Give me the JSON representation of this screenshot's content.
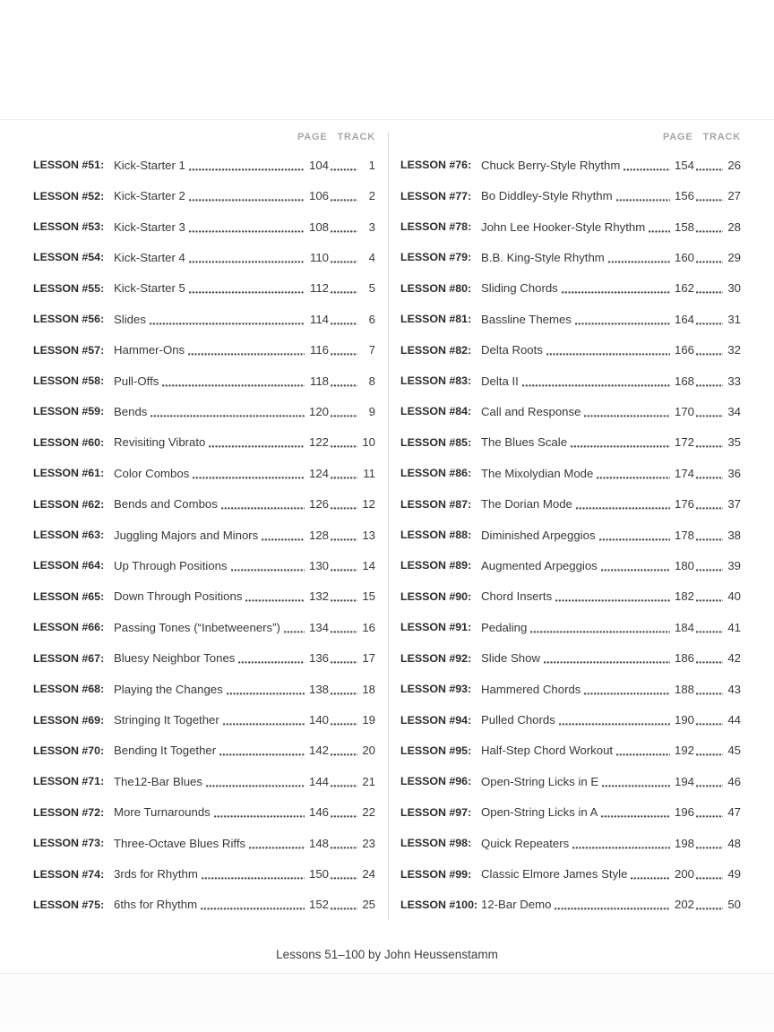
{
  "header": {
    "page_label": "PAGE",
    "track_label": "TRACK"
  },
  "footer": {
    "credit": "Lessons 51–100 by John Heussenstamm"
  },
  "columns": [
    {
      "entries": [
        {
          "label": "LESSON #51:",
          "title": "Kick-Starter 1",
          "page": "104",
          "track": "1"
        },
        {
          "label": "LESSON #52:",
          "title": "Kick-Starter 2",
          "page": "106",
          "track": "2"
        },
        {
          "label": "LESSON #53:",
          "title": "Kick-Starter 3",
          "page": "108",
          "track": "3"
        },
        {
          "label": "LESSON #54:",
          "title": "Kick-Starter 4",
          "page": "110",
          "track": "4"
        },
        {
          "label": "LESSON #55:",
          "title": "Kick-Starter 5",
          "page": "112",
          "track": "5"
        },
        {
          "label": "LESSON #56:",
          "title": "Slides",
          "page": "114",
          "track": "6"
        },
        {
          "label": "LESSON #57:",
          "title": "Hammer-Ons",
          "page": "116",
          "track": "7"
        },
        {
          "label": "LESSON #58:",
          "title": "Pull-Offs",
          "page": "118",
          "track": "8"
        },
        {
          "label": "LESSON #59:",
          "title": "Bends",
          "page": "120",
          "track": "9"
        },
        {
          "label": "LESSON #60:",
          "title": "Revisiting Vibrato",
          "page": "122",
          "track": "10"
        },
        {
          "label": "LESSON #61:",
          "title": "Color Combos",
          "page": "124",
          "track": "11"
        },
        {
          "label": "LESSON #62:",
          "title": "Bends and Combos",
          "page": "126",
          "track": "12"
        },
        {
          "label": "LESSON #63:",
          "title": "Juggling Majors and Minors",
          "page": "128",
          "track": "13"
        },
        {
          "label": "LESSON #64:",
          "title": "Up Through Positions",
          "page": "130",
          "track": "14"
        },
        {
          "label": "LESSON #65:",
          "title": "Down Through Positions",
          "page": "132",
          "track": "15"
        },
        {
          "label": "LESSON #66:",
          "title": "Passing Tones (“Inbetweeners”)",
          "page": "134",
          "track": "16"
        },
        {
          "label": "LESSON #67:",
          "title": "Bluesy Neighbor Tones",
          "page": "136",
          "track": "17"
        },
        {
          "label": "LESSON #68:",
          "title": "Playing the Changes",
          "page": "138",
          "track": "18"
        },
        {
          "label": "LESSON #69:",
          "title": "Stringing It Together",
          "page": "140",
          "track": "19"
        },
        {
          "label": "LESSON #70:",
          "title": "Bending It Together",
          "page": "142",
          "track": "20"
        },
        {
          "label": "LESSON #71:",
          "title": "The12-Bar Blues",
          "page": "144",
          "track": "21"
        },
        {
          "label": "LESSON #72:",
          "title": "More Turnarounds",
          "page": "146",
          "track": "22"
        },
        {
          "label": "LESSON #73:",
          "title": "Three-Octave Blues Riffs",
          "page": "148",
          "track": "23"
        },
        {
          "label": "LESSON #74:",
          "title": "3rds for Rhythm",
          "page": "150",
          "track": "24"
        },
        {
          "label": "LESSON #75:",
          "title": "6ths for Rhythm",
          "page": "152",
          "track": "25"
        }
      ]
    },
    {
      "entries": [
        {
          "label": "LESSON #76:",
          "title": "Chuck Berry-Style Rhythm",
          "page": "154",
          "track": "26"
        },
        {
          "label": "LESSON #77:",
          "title": "Bo Diddley-Style Rhythm",
          "page": "156",
          "track": "27"
        },
        {
          "label": "LESSON #78:",
          "title": "John Lee Hooker-Style Rhythm",
          "page": "158",
          "track": "28"
        },
        {
          "label": "LESSON #79:",
          "title": "B.B. King-Style Rhythm",
          "page": "160",
          "track": "29"
        },
        {
          "label": "LESSON #80:",
          "title": "Sliding Chords",
          "page": "162",
          "track": "30"
        },
        {
          "label": "LESSON #81:",
          "title": "Bassline Themes",
          "page": "164",
          "track": "31"
        },
        {
          "label": "LESSON #82:",
          "title": "Delta Roots",
          "page": "166",
          "track": "32"
        },
        {
          "label": "LESSON #83:",
          "title": "Delta II",
          "page": "168",
          "track": "33"
        },
        {
          "label": "LESSON #84:",
          "title": "Call and Response",
          "page": "170",
          "track": "34"
        },
        {
          "label": "LESSON #85:",
          "title": "The Blues Scale",
          "page": "172",
          "track": "35"
        },
        {
          "label": "LESSON #86:",
          "title": "The Mixolydian Mode",
          "page": "174",
          "track": "36"
        },
        {
          "label": "LESSON #87:",
          "title": "The Dorian Mode",
          "page": "176",
          "track": "37"
        },
        {
          "label": "LESSON #88:",
          "title": "Diminished Arpeggios",
          "page": "178",
          "track": "38"
        },
        {
          "label": "LESSON #89:",
          "title": "Augmented Arpeggios",
          "page": "180",
          "track": "39"
        },
        {
          "label": "LESSON #90:",
          "title": "Chord Inserts",
          "page": "182",
          "track": "40"
        },
        {
          "label": "LESSON #91:",
          "title": "Pedaling",
          "page": "184",
          "track": "41"
        },
        {
          "label": "LESSON #92:",
          "title": "Slide Show",
          "page": "186",
          "track": "42"
        },
        {
          "label": "LESSON #93:",
          "title": "Hammered Chords",
          "page": "188",
          "track": "43"
        },
        {
          "label": "LESSON #94:",
          "title": "Pulled Chords",
          "page": "190",
          "track": "44"
        },
        {
          "label": "LESSON #95:",
          "title": "Half-Step Chord Workout",
          "page": "192",
          "track": "45"
        },
        {
          "label": "LESSON #96:",
          "title": "Open-String Licks in E",
          "page": "194",
          "track": "46"
        },
        {
          "label": "LESSON #97:",
          "title": "Open-String Licks in A",
          "page": "196",
          "track": "47"
        },
        {
          "label": "LESSON #98:",
          "title": "Quick Repeaters",
          "page": "198",
          "track": "48"
        },
        {
          "label": "LESSON #99:",
          "title": "Classic Elmore James Style",
          "page": "200",
          "track": "49"
        },
        {
          "label": "LESSON #100:",
          "title": "12-Bar Demo",
          "page": "202",
          "track": "50"
        }
      ]
    }
  ]
}
